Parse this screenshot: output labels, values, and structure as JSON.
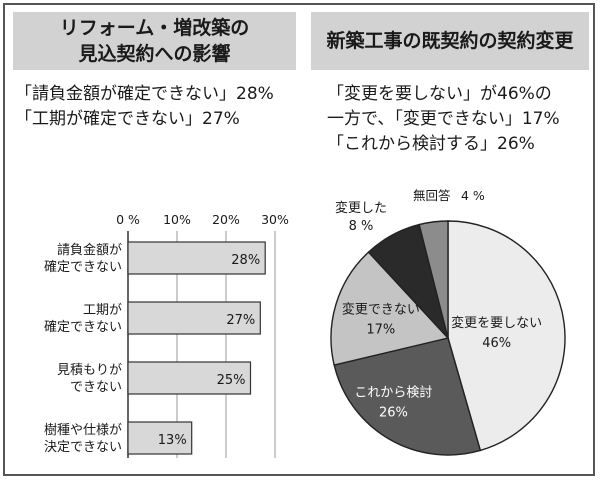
{
  "left": {
    "title_line1": "リフォーム・増改築の",
    "title_line2": "見込契約への影響",
    "summary_line1": "「請負金額が確定できない」28%",
    "summary_line2": "「工期が確定できない」27%"
  },
  "right": {
    "title": "新築工事の既契約の契約変更",
    "summary_line1": "「変更を要しない」が46%の",
    "summary_line2": "一方で、「変更できない」17%",
    "summary_line3": "「これから検討する」26%"
  },
  "chart_data": [
    {
      "type": "bar",
      "orientation": "horizontal",
      "categories": [
        "請負金額が確定できない",
        "工期が確定できない",
        "見積もりができない",
        "樹種や仕様が決定できない"
      ],
      "category_lines": [
        [
          "請負金額が",
          "確定できない"
        ],
        [
          "工期が",
          "確定できない"
        ],
        [
          "見積もりが",
          "できない"
        ],
        [
          "樹種や仕様が",
          "決定できない"
        ]
      ],
      "values": [
        28,
        27,
        25,
        13
      ],
      "value_labels": [
        "28%",
        "27%",
        "25%",
        "13%"
      ],
      "xlim": [
        0,
        30
      ],
      "ticks": [
        0,
        10,
        20,
        30
      ],
      "tick_labels": [
        "0 %",
        "10%",
        "20%",
        "30%"
      ],
      "bar_color": "#d8d8d8"
    },
    {
      "type": "pie",
      "slices": [
        {
          "label": "変更を要しない",
          "value": 46,
          "value_label": "46%",
          "color": "#ececec"
        },
        {
          "label": "これから検討",
          "value": 26,
          "value_label": "26%",
          "color": "#5a5a5a"
        },
        {
          "label": "変更できない",
          "value": 17,
          "value_label": "17%",
          "color": "#c4c4c4"
        },
        {
          "label": "変更した",
          "value": 8,
          "value_label": "8 %",
          "color": "#2a2a2a"
        },
        {
          "label": "無回答",
          "value": 4,
          "value_label": "4 %",
          "color": "#8c8c8c"
        }
      ]
    }
  ]
}
